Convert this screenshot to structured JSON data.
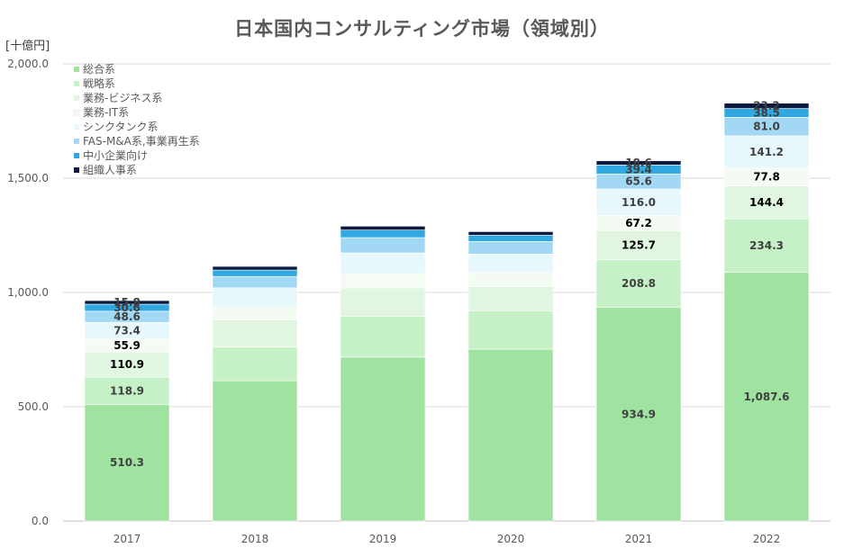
{
  "chart_data": {
    "type": "bar",
    "stacked": true,
    "title": "日本国内コンサルティング市場（領域別）",
    "unit": "[十億円]",
    "xlabel": "",
    "ylabel": "",
    "ylim": [
      0,
      2000
    ],
    "yticks": [
      "0.0",
      "500.0",
      "1,000.0",
      "1,500.0",
      "2,000.0"
    ],
    "ytick_values": [
      0,
      500,
      1000,
      1500,
      2000
    ],
    "grid": true,
    "legend_position": "top-left",
    "categories": [
      "2017",
      "2018",
      "2019",
      "2020",
      "2021",
      "2022"
    ],
    "series": [
      {
        "name": "総合系",
        "color": "#a0e2a0",
        "label_color": "#404040",
        "values": [
          510.3,
          614,
          717,
          752,
          934.9,
          1087.6
        ],
        "labels": [
          "510.3",
          null,
          null,
          null,
          "934.9",
          "1,087.6"
        ]
      },
      {
        "name": "戦略系",
        "color": "#c6f0c6",
        "label_color": "#404040",
        "values": [
          118.9,
          148,
          178,
          168,
          208.8,
          234.3
        ],
        "labels": [
          "118.9",
          null,
          null,
          null,
          "208.8",
          "234.3"
        ]
      },
      {
        "name": "業務-ビジネス系",
        "color": "#e0f6e0",
        "label_color": "#000000",
        "values": [
          110.9,
          118,
          125,
          105,
          125.7,
          144.4
        ],
        "labels": [
          "110.9",
          null,
          null,
          null,
          "125.7",
          "144.4"
        ]
      },
      {
        "name": "業務-IT系",
        "color": "#f3fbf3",
        "label_color": "#000000",
        "values": [
          55.9,
          58,
          63,
          63,
          67.2,
          77.8
        ],
        "labels": [
          "55.9",
          null,
          null,
          null,
          "67.2",
          "77.8"
        ]
      },
      {
        "name": "シンクタンク系",
        "color": "#e6f8fc",
        "label_color": "#404040",
        "values": [
          73.4,
          82,
          90,
          80,
          116.0,
          141.2
        ],
        "labels": [
          "73.4",
          null,
          null,
          null,
          "116.0",
          "141.2"
        ]
      },
      {
        "name": "FAS-M&A系,事業再生系",
        "color": "#a3d8f5",
        "label_color": "#404040",
        "values": [
          48.6,
          50,
          67,
          55,
          65.6,
          81.0
        ],
        "labels": [
          "48.6",
          null,
          null,
          null,
          "65.6",
          "81.0"
        ]
      },
      {
        "name": "中小企業向け",
        "color": "#31a8e0",
        "label_color": "#404040",
        "values": [
          30.6,
          28,
          33,
          27,
          39.4,
          38.5
        ],
        "labels": [
          "30.6",
          null,
          null,
          null,
          "39.4",
          "38.5"
        ]
      },
      {
        "name": "組織人事系",
        "color": "#0d1a3f",
        "label_color": "#404040",
        "values": [
          15.8,
          16,
          17,
          16,
          18.6,
          23.2
        ],
        "labels": [
          "15.8",
          null,
          null,
          null,
          "18.6",
          "23.2"
        ]
      }
    ]
  }
}
